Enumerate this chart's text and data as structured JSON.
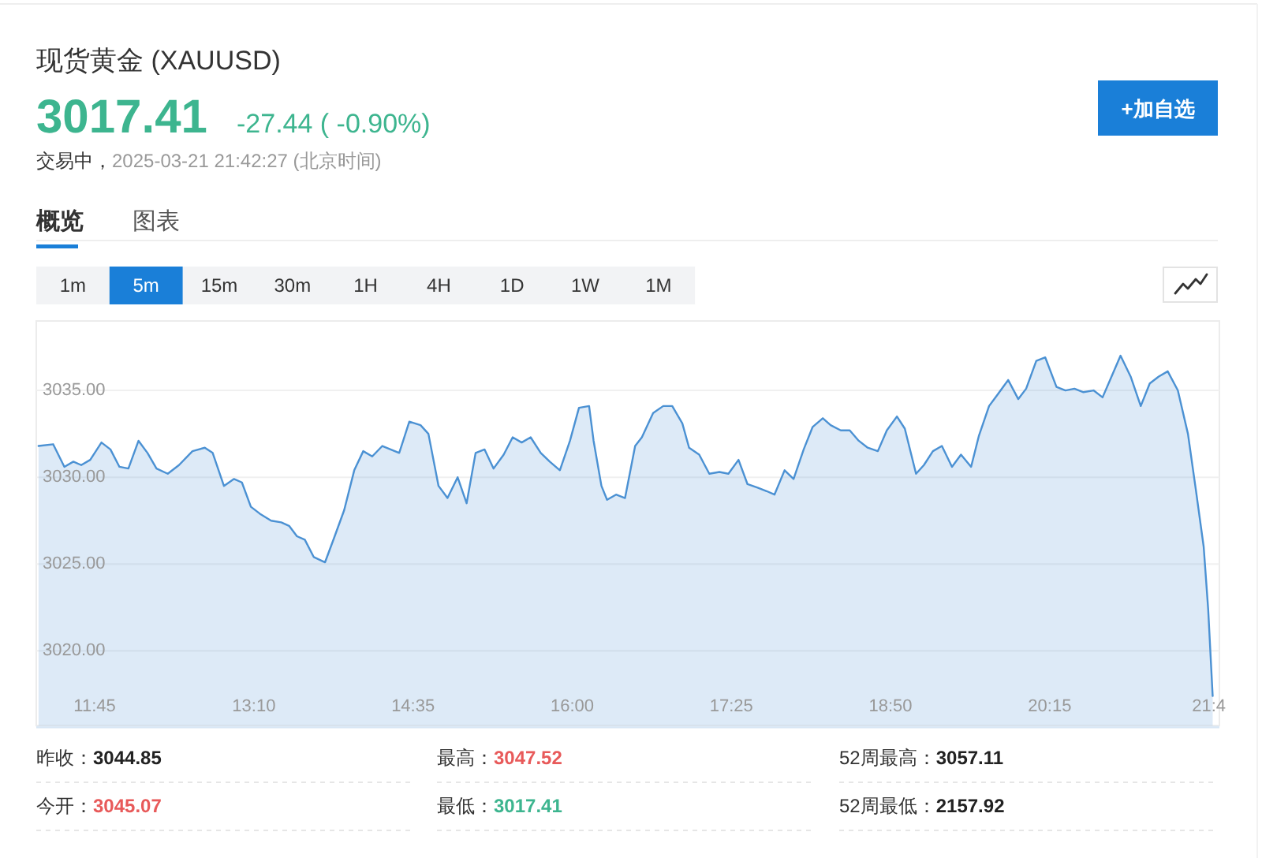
{
  "chart_data": {
    "type": "area",
    "title": "现货黄金 (XAUUSD)",
    "color": "#4b91d3",
    "x": [
      11.25,
      11.38,
      11.48,
      11.56,
      11.63,
      11.71,
      11.81,
      11.89,
      11.97,
      12.05,
      12.14,
      12.22,
      12.3,
      12.4,
      12.5,
      12.62,
      12.73,
      12.8,
      12.9,
      12.99,
      13.06,
      13.14,
      13.22,
      13.32,
      13.41,
      13.48,
      13.55,
      13.62,
      13.7,
      13.8,
      13.88,
      13.97,
      14.06,
      14.14,
      14.22,
      14.31,
      14.46,
      14.55,
      14.65,
      14.72,
      14.81,
      14.89,
      14.98,
      15.06,
      15.14,
      15.22,
      15.3,
      15.39,
      15.47,
      15.55,
      15.63,
      15.72,
      15.8,
      15.89,
      15.98,
      16.06,
      16.15,
      16.19,
      16.26,
      16.31,
      16.39,
      16.47,
      16.56,
      16.62,
      16.72,
      16.81,
      16.89,
      16.98,
      17.04,
      17.13,
      17.22,
      17.31,
      17.39,
      17.48,
      17.56,
      17.65,
      17.73,
      17.8,
      17.89,
      17.97,
      18.06,
      18.14,
      18.23,
      18.3,
      18.39,
      18.47,
      18.55,
      18.63,
      18.72,
      18.8,
      18.89,
      18.96,
      19.06,
      19.13,
      19.21,
      19.29,
      19.38,
      19.46,
      19.55,
      19.62,
      19.71,
      19.79,
      19.88,
      19.97,
      20.04,
      20.13,
      20.21,
      20.31,
      20.39,
      20.47,
      20.55,
      20.64,
      20.72,
      20.8,
      20.88,
      20.97,
      21.06,
      21.14,
      21.22,
      21.3,
      21.39,
      21.48,
      21.55,
      21.62,
      21.66,
      21.7
    ],
    "values": [
      3031.8,
      3031.9,
      3030.6,
      3030.9,
      3030.7,
      3031.0,
      3032.0,
      3031.6,
      3030.6,
      3030.5,
      3032.1,
      3031.4,
      3030.5,
      3030.2,
      3030.7,
      3031.5,
      3031.7,
      3031.4,
      3029.5,
      3029.9,
      3029.7,
      3028.3,
      3027.9,
      3027.5,
      3027.4,
      3027.2,
      3026.6,
      3026.4,
      3025.4,
      3025.1,
      3026.5,
      3028.1,
      3030.4,
      3031.5,
      3031.2,
      3031.8,
      3031.4,
      3033.2,
      3033.0,
      3032.5,
      3029.5,
      3028.8,
      3030.0,
      3028.5,
      3031.4,
      3031.6,
      3030.5,
      3031.3,
      3032.3,
      3032.0,
      3032.3,
      3031.4,
      3030.9,
      3030.4,
      3032.1,
      3034.0,
      3034.1,
      3032.1,
      3029.5,
      3028.7,
      3029.0,
      3028.8,
      3031.8,
      3032.3,
      3033.7,
      3034.1,
      3034.1,
      3033.1,
      3031.7,
      3031.3,
      3030.2,
      3030.3,
      3030.2,
      3031.0,
      3029.6,
      3029.4,
      3029.2,
      3029.0,
      3030.4,
      3029.9,
      3031.6,
      3032.9,
      3033.4,
      3033.0,
      3032.7,
      3032.7,
      3032.1,
      3031.7,
      3031.5,
      3032.7,
      3033.5,
      3032.8,
      3030.2,
      3030.7,
      3031.5,
      3031.8,
      3030.6,
      3031.3,
      3030.6,
      3032.4,
      3034.1,
      3034.8,
      3035.6,
      3034.5,
      3035.1,
      3036.7,
      3036.9,
      3035.2,
      3035.0,
      3035.1,
      3034.9,
      3035.0,
      3034.6,
      3035.8,
      3037.0,
      3035.8,
      3034.1,
      3035.4,
      3035.8,
      3036.1,
      3035.0,
      3032.5,
      3029.3,
      3026.0,
      3022.4,
      3017.4
    ],
    "xlim": [
      11.23,
      21.76
    ],
    "ylim": [
      3015.7,
      3039.0
    ],
    "xticks": [
      {
        "value": 11.75,
        "label": "11:45"
      },
      {
        "value": 13.1667,
        "label": "13:10"
      },
      {
        "value": 14.5833,
        "label": "14:35"
      },
      {
        "value": 16.0,
        "label": "16:00"
      },
      {
        "value": 17.4167,
        "label": "17:25"
      },
      {
        "value": 18.8333,
        "label": "18:50"
      },
      {
        "value": 20.25,
        "label": "20:15"
      },
      {
        "value": 21.6667,
        "label": "21:4"
      }
    ],
    "yticks": [
      {
        "value": 3020,
        "label": "3020.00"
      },
      {
        "value": 3025,
        "label": "3025.00"
      },
      {
        "value": 3030,
        "label": "3030.00"
      },
      {
        "value": 3035,
        "label": "3035.00"
      }
    ],
    "grid": "y",
    "annotations": [
      "3017.41",
      "-27.44 ( -0.90%)",
      "交易中，",
      "2025-03-21 21:42:27 (北京时间)",
      "+加自选",
      "概览",
      "图表",
      "1m",
      "5m",
      "15m",
      "30m",
      "1H",
      "4H",
      "1D",
      "1W",
      "1M",
      "昨收：**3044.85**",
      "最高：**3047.52**",
      "52周最高：**3057.11**",
      "今开：**3045.07**",
      "最低：**3017.41**",
      "52周最低：**2157.92**"
    ]
  }
}
